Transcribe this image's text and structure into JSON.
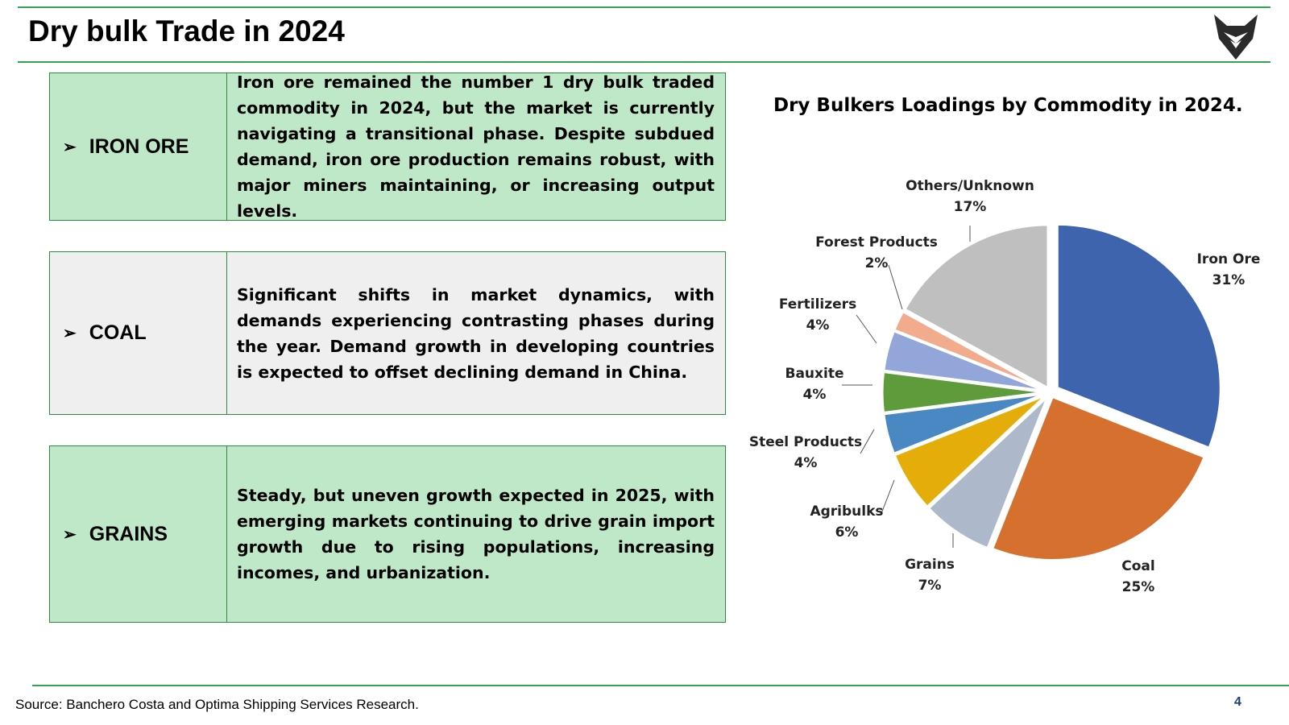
{
  "header": {
    "title": "Dry bulk Trade in 2024"
  },
  "commodities": [
    {
      "label": "IRON ORE",
      "arrow": "➢",
      "text": "Iron ore remained the number 1 dry bulk traded commodity in 2024, but the market is currently navigating a transitional phase. Despite subdued demand, iron ore production remains robust, with major miners maintaining, or increasing output levels."
    },
    {
      "label": "COAL",
      "arrow": "➢",
      "text": "Significant shifts in market dynamics, with demands experiencing contrasting phases during the year. Demand growth in developing countries is expected to offset declining demand in China."
    },
    {
      "label": "GRAINS",
      "arrow": "➢",
      "text": "Steady, but uneven growth expected in 2025, with emerging markets continuing to drive grain import growth due to rising populations, increasing incomes, and urbanization."
    }
  ],
  "chart_data": {
    "type": "pie",
    "title": "Dry Bulkers Loadings by Commodity in 2024.",
    "slices": [
      {
        "name": "Iron Ore",
        "value": 31,
        "label": "31%",
        "color": "#3d64ad"
      },
      {
        "name": "Coal",
        "value": 25,
        "label": "25%",
        "color": "#d5702e"
      },
      {
        "name": "Grains",
        "value": 7,
        "label": "7%",
        "color": "#adb9ca"
      },
      {
        "name": "Agribulks",
        "value": 6,
        "label": "6%",
        "color": "#e5ad0a"
      },
      {
        "name": "Steel Products",
        "value": 4,
        "label": "4%",
        "color": "#4a88c4"
      },
      {
        "name": "Bauxite",
        "value": 4,
        "label": "4%",
        "color": "#5e9c3b"
      },
      {
        "name": "Fertilizers",
        "value": 4,
        "label": "4%",
        "color": "#93a6d9"
      },
      {
        "name": "Forest Products",
        "value": 2,
        "label": "2%",
        "color": "#f3ab8e"
      },
      {
        "name": "Others/Unknown",
        "value": 17,
        "label": "17%",
        "color": "#bfbfbf"
      }
    ]
  },
  "footer": {
    "source": "Source: Banchero Costa and Optima Shipping Services Research.",
    "page": "4"
  },
  "colors": {
    "accent_green": "#2ea84e",
    "card_green": "#bfe8c8",
    "card_gray": "#efefef",
    "page_number": "#1f3b75"
  }
}
